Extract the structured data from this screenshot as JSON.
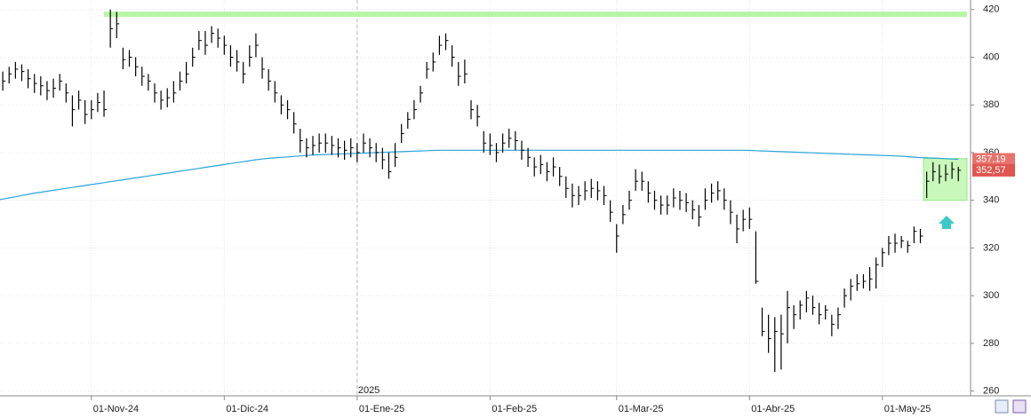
{
  "chart_data": {
    "type": "ohlc",
    "categories": [
      null,
      null,
      null,
      null,
      null,
      null,
      null,
      null,
      null,
      null,
      null,
      null,
      null,
      null,
      null,
      "01-Nov-24",
      null,
      null,
      null,
      null,
      null,
      null,
      null,
      null,
      null,
      null,
      null,
      null,
      null,
      null,
      null,
      null,
      null,
      null,
      null,
      null,
      "01-Dic-24",
      null,
      null,
      null,
      null,
      null,
      null,
      null,
      null,
      null,
      null,
      null,
      null,
      null,
      null,
      null,
      null,
      null,
      null,
      null,
      null,
      "01-Ene-25",
      null,
      null,
      null,
      null,
      null,
      null,
      null,
      null,
      null,
      null,
      null,
      null,
      null,
      null,
      null,
      null,
      null,
      null,
      null,
      null,
      "01-Feb-25",
      null,
      null,
      null,
      null,
      null,
      null,
      null,
      null,
      null,
      null,
      null,
      null,
      null,
      null,
      null,
      null,
      null,
      null,
      null,
      "01-Mar-25",
      null,
      null,
      null,
      null,
      null,
      null,
      null,
      null,
      null,
      null,
      null,
      null,
      null,
      null,
      null,
      null,
      null,
      null,
      null,
      null,
      "01-Abr-25",
      null,
      null,
      null,
      null,
      null,
      null,
      null,
      null,
      null,
      null,
      null,
      null,
      null,
      null,
      null,
      null,
      null,
      null,
      null,
      null,
      "01-May-25",
      null,
      null,
      null,
      null,
      null,
      null,
      null,
      null,
      null,
      null,
      null,
      null
    ],
    "high": [
      396,
      394,
      396,
      398,
      397,
      395,
      393,
      392,
      390,
      391,
      393,
      389,
      384,
      386,
      382,
      382,
      385,
      386,
      420,
      419,
      404,
      403,
      400,
      396,
      393,
      389,
      386,
      387,
      390,
      394,
      398,
      404,
      411,
      411,
      413,
      412,
      409,
      405,
      403,
      398,
      405,
      410,
      400,
      395,
      390,
      384,
      382,
      377,
      370,
      366,
      367,
      368,
      368,
      367,
      366,
      365,
      366,
      364,
      368,
      366,
      364,
      362,
      360,
      364,
      372,
      377,
      382,
      388,
      398,
      402,
      409,
      410,
      405,
      398,
      399,
      382,
      380,
      369,
      368,
      364,
      368,
      370,
      369,
      365,
      362,
      358,
      359,
      356,
      358,
      354,
      350,
      347,
      346,
      348,
      349,
      348,
      346,
      340,
      330,
      338,
      344,
      353,
      352,
      348,
      344,
      342,
      342,
      345,
      344,
      343,
      340,
      338,
      345,
      347,
      348,
      345,
      340,
      334,
      336,
      337,
      327,
      295,
      292,
      291,
      292,
      302,
      296,
      298,
      302,
      300,
      297,
      296,
      292,
      295,
      303,
      307,
      309,
      309,
      312,
      316,
      320,
      325,
      326,
      325,
      323,
      329,
      328,
      352,
      356,
      355,
      355,
      356,
      354
    ],
    "low": [
      388,
      386,
      389,
      391,
      390,
      387,
      385,
      384,
      382,
      383,
      386,
      381,
      371,
      378,
      372,
      374,
      377,
      375,
      404,
      408,
      395,
      396,
      392,
      388,
      386,
      381,
      378,
      379,
      381,
      386,
      389,
      396,
      403,
      401,
      406,
      404,
      401,
      396,
      394,
      389,
      396,
      400,
      391,
      386,
      381,
      376,
      374,
      368,
      360,
      358,
      359,
      360,
      360,
      359,
      358,
      357,
      358,
      356,
      360,
      358,
      356,
      353,
      349,
      354,
      364,
      370,
      374,
      381,
      391,
      394,
      401,
      403,
      396,
      388,
      389,
      374,
      371,
      360,
      359,
      356,
      360,
      362,
      361,
      357,
      354,
      350,
      351,
      348,
      350,
      346,
      341,
      337,
      338,
      340,
      341,
      340,
      338,
      331,
      318,
      330,
      336,
      344,
      344,
      339,
      336,
      334,
      334,
      337,
      336,
      335,
      332,
      329,
      336,
      339,
      340,
      336,
      330,
      322,
      327,
      328,
      305,
      283,
      276,
      268,
      269,
      280,
      286,
      290,
      293,
      292,
      288,
      290,
      283,
      286,
      295,
      298,
      302,
      303,
      302,
      303,
      312,
      317,
      318,
      320,
      318,
      322,
      322,
      341,
      348,
      347,
      348,
      349,
      348
    ],
    "close": [
      392,
      390,
      393,
      395,
      394,
      391,
      389,
      388,
      386,
      387,
      390,
      385,
      378,
      382,
      376,
      378,
      381,
      378,
      412,
      414,
      399,
      400,
      396,
      392,
      390,
      385,
      382,
      383,
      385,
      390,
      393,
      400,
      407,
      405,
      410,
      408,
      405,
      400,
      398,
      393,
      400,
      405,
      395,
      390,
      385,
      380,
      378,
      372,
      365,
      362,
      363,
      364,
      364,
      363,
      362,
      361,
      362,
      360,
      364,
      362,
      360,
      357,
      352,
      358,
      368,
      374,
      378,
      385,
      395,
      398,
      405,
      407,
      400,
      392,
      393,
      378,
      375,
      364,
      363,
      360,
      364,
      366,
      365,
      361,
      358,
      354,
      355,
      352,
      354,
      350,
      345,
      342,
      342,
      344,
      345,
      344,
      342,
      335,
      325,
      334,
      340,
      348,
      348,
      343,
      340,
      338,
      338,
      341,
      340,
      339,
      336,
      333,
      340,
      343,
      344,
      340,
      335,
      328,
      332,
      332,
      306,
      285,
      282,
      285,
      284,
      295,
      292,
      296,
      299,
      295,
      292,
      294,
      288,
      292,
      300,
      304,
      305,
      306,
      307,
      313,
      318,
      322,
      322,
      323,
      321,
      327,
      325,
      348,
      352,
      350,
      351,
      353,
      352.57
    ],
    "color": "#000000",
    "overlay": {
      "type": "line",
      "color": "#2aa3d8",
      "values": [
        340,
        340.5,
        341,
        341.5,
        342,
        342.5,
        343,
        343.4,
        343.8,
        344.2,
        344.6,
        345,
        345.4,
        345.8,
        346.2,
        346.6,
        347,
        347.4,
        347.8,
        348.2,
        348.6,
        349,
        349.4,
        349.8,
        350.2,
        350.6,
        351,
        351.4,
        351.8,
        352.2,
        352.6,
        353,
        353.4,
        353.8,
        354.2,
        354.6,
        355,
        355.4,
        355.8,
        356.2,
        356.6,
        357,
        357.3,
        357.6,
        357.8,
        358,
        358.2,
        358.4,
        358.6,
        358.8,
        359,
        359.1,
        359.2,
        359.3,
        359.4,
        359.5,
        359.6,
        359.7,
        359.8,
        359.9,
        360,
        360.1,
        360.2,
        360.3,
        360.4,
        360.5,
        360.6,
        360.7,
        360.8,
        360.9,
        361,
        361,
        361,
        361,
        361,
        361,
        361,
        361,
        361,
        361,
        361,
        361,
        361,
        361,
        361,
        361,
        361,
        361,
        361,
        361,
        361,
        361,
        361,
        361,
        361,
        361,
        361,
        361,
        361,
        361,
        361,
        361,
        361,
        361,
        361,
        361,
        361,
        361,
        361,
        361,
        361,
        361,
        361,
        361,
        361,
        361,
        361,
        361,
        361,
        360.9,
        360.8,
        360.7,
        360.6,
        360.5,
        360.4,
        360.3,
        360.2,
        360.1,
        360,
        359.9,
        359.8,
        359.7,
        359.6,
        359.5,
        359.4,
        359.3,
        359.2,
        359.1,
        359,
        358.9,
        358.8,
        358.7,
        358.6,
        358.5,
        358.3,
        358.1,
        357.9,
        357.8,
        357.7,
        357.6,
        357.45,
        357.3,
        357.19
      ]
    },
    "ylim": [
      258,
      424
    ],
    "yticks": [
      260,
      280,
      300,
      320,
      340,
      360,
      380,
      400,
      420
    ],
    "grid": true,
    "year_label": "2025",
    "resistance": {
      "value": 418,
      "color": "#b6f5a6"
    },
    "highlight_box": {
      "ylim": [
        340,
        357.5
      ],
      "color": "#c9f8bb"
    },
    "price_markers": [
      {
        "value": 357.19,
        "label": "357,19",
        "color": "#e8726c"
      },
      {
        "value": 352.57,
        "label": "352,57",
        "color": "#e05550"
      }
    ]
  }
}
